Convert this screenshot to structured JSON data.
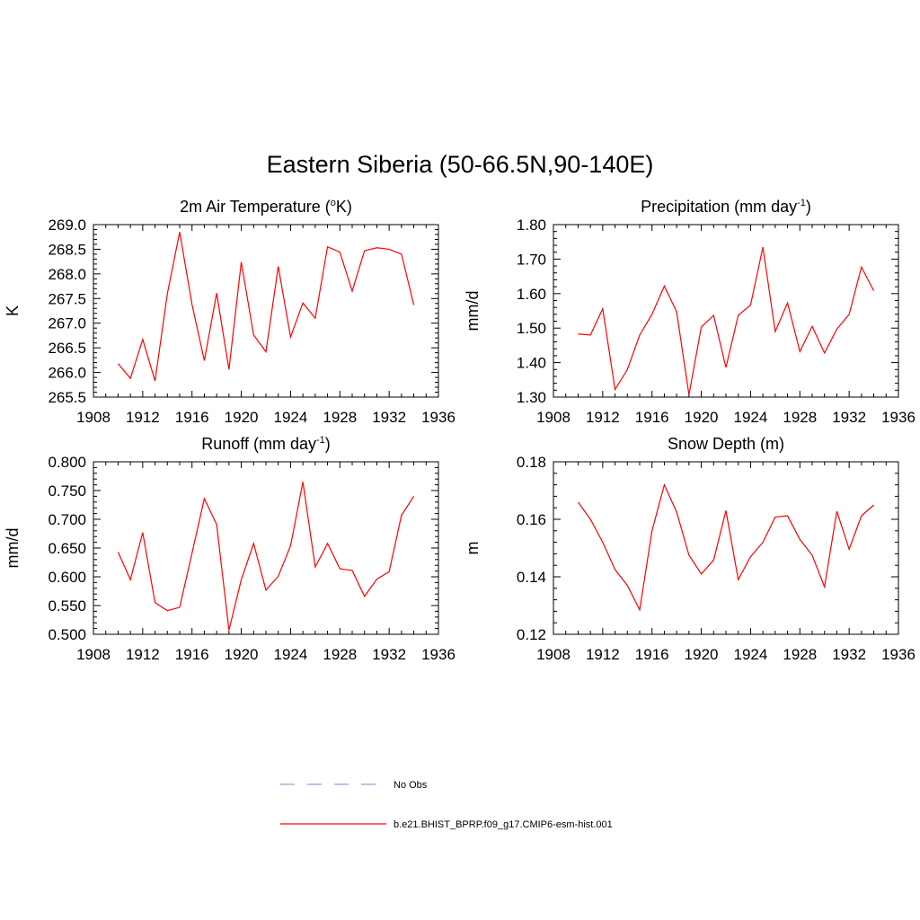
{
  "figure": {
    "title": "Eastern Siberia (50-66.5N,90-140E)"
  },
  "chart_data": [
    {
      "type": "line",
      "title": "2m Air Temperature (",
      "title_sup": "o",
      "title_after": "K)",
      "ylabel": "K",
      "xlim": [
        1908,
        1936
      ],
      "ylim": [
        265.5,
        269.0
      ],
      "xticks": [
        "1908",
        "1912",
        "1916",
        "1920",
        "1924",
        "1928",
        "1932",
        "1936"
      ],
      "yticks": [
        "265.5",
        "266.0",
        "266.5",
        "267.0",
        "267.5",
        "268.0",
        "268.5",
        "269.0"
      ],
      "x": [
        1910,
        1911,
        1912,
        1913,
        1914,
        1915,
        1916,
        1917,
        1918,
        1919,
        1920,
        1921,
        1922,
        1923,
        1924,
        1925,
        1926,
        1927,
        1928,
        1929,
        1930,
        1931,
        1932,
        1933,
        1934
      ],
      "series": [
        {
          "color": "#ff0000",
          "values": [
            266.18,
            265.88,
            266.67,
            265.83,
            267.6,
            268.85,
            267.38,
            266.24,
            267.61,
            266.06,
            268.24,
            266.76,
            266.42,
            268.15,
            266.72,
            267.41,
            267.1,
            268.55,
            268.44,
            267.65,
            268.47,
            268.53,
            268.5,
            268.4,
            267.37
          ]
        }
      ]
    },
    {
      "type": "line",
      "title": "Precipitation (mm day",
      "title_sup": "-1",
      "title_after": ")",
      "ylabel": "mm/d",
      "xlim": [
        1908,
        1936
      ],
      "ylim": [
        1.3,
        1.8
      ],
      "xticks": [
        "1908",
        "1912",
        "1916",
        "1920",
        "1924",
        "1928",
        "1932",
        "1936"
      ],
      "yticks": [
        "1.30",
        "1.40",
        "1.50",
        "1.60",
        "1.70",
        "1.80"
      ],
      "x": [
        1910,
        1911,
        1912,
        1913,
        1914,
        1915,
        1916,
        1917,
        1918,
        1919,
        1920,
        1921,
        1922,
        1923,
        1924,
        1925,
        1926,
        1927,
        1928,
        1929,
        1930,
        1931,
        1932,
        1933,
        1934
      ],
      "series": [
        {
          "color": "#ff0000",
          "values": [
            1.483,
            1.48,
            1.556,
            1.322,
            1.38,
            1.48,
            1.54,
            1.622,
            1.547,
            1.307,
            1.503,
            1.537,
            1.386,
            1.537,
            1.567,
            1.735,
            1.49,
            1.573,
            1.432,
            1.505,
            1.428,
            1.497,
            1.54,
            1.677,
            1.608
          ]
        }
      ]
    },
    {
      "type": "line",
      "title": "Runoff (mm day",
      "title_sup": "-1",
      "title_after": ")",
      "ylabel": "mm/d",
      "xlim": [
        1908,
        1936
      ],
      "ylim": [
        0.5,
        0.8
      ],
      "xticks": [
        "1908",
        "1912",
        "1916",
        "1920",
        "1924",
        "1928",
        "1932",
        "1936"
      ],
      "yticks": [
        "0.500",
        "0.550",
        "0.600",
        "0.650",
        "0.700",
        "0.750",
        "0.800"
      ],
      "x": [
        1910,
        1911,
        1912,
        1913,
        1914,
        1915,
        1916,
        1917,
        1918,
        1919,
        1920,
        1921,
        1922,
        1923,
        1924,
        1925,
        1926,
        1927,
        1928,
        1929,
        1930,
        1931,
        1932,
        1933,
        1934
      ],
      "series": [
        {
          "color": "#ff0000",
          "values": [
            0.643,
            0.595,
            0.677,
            0.555,
            0.541,
            0.547,
            0.641,
            0.736,
            0.691,
            0.507,
            0.595,
            0.658,
            0.577,
            0.601,
            0.654,
            0.765,
            0.617,
            0.658,
            0.614,
            0.611,
            0.566,
            0.596,
            0.609,
            0.707,
            0.74
          ]
        }
      ]
    },
    {
      "type": "line",
      "title": "Snow Depth (m)",
      "title_sup": "",
      "title_after": "",
      "ylabel": "m",
      "xlim": [
        1908,
        1936
      ],
      "ylim": [
        0.12,
        0.18
      ],
      "xticks": [
        "1908",
        "1912",
        "1916",
        "1920",
        "1924",
        "1928",
        "1932",
        "1936"
      ],
      "yticks": [
        "0.12",
        "0.14",
        "0.16",
        "0.18"
      ],
      "x": [
        1910,
        1911,
        1912,
        1913,
        1914,
        1915,
        1916,
        1917,
        1918,
        1919,
        1920,
        1921,
        1922,
        1923,
        1924,
        1925,
        1926,
        1927,
        1928,
        1929,
        1930,
        1931,
        1932,
        1933,
        1934
      ],
      "series": [
        {
          "color": "#ff0000",
          "values": [
            0.166,
            0.16,
            0.152,
            0.1425,
            0.137,
            0.1285,
            0.156,
            0.172,
            0.1625,
            0.1475,
            0.141,
            0.1458,
            0.163,
            0.139,
            0.147,
            0.152,
            0.1608,
            0.1612,
            0.153,
            0.1475,
            0.1365,
            0.1628,
            0.1496,
            0.1612,
            0.165
          ]
        }
      ]
    }
  ],
  "legend": [
    {
      "label": "No Obs",
      "color": "#9999ee",
      "dashed": true
    },
    {
      "label": "b.e21.BHIST_BPRP.f09_g17.CMIP6-esm-hist.001",
      "color": "#ff0000",
      "dashed": false
    }
  ]
}
